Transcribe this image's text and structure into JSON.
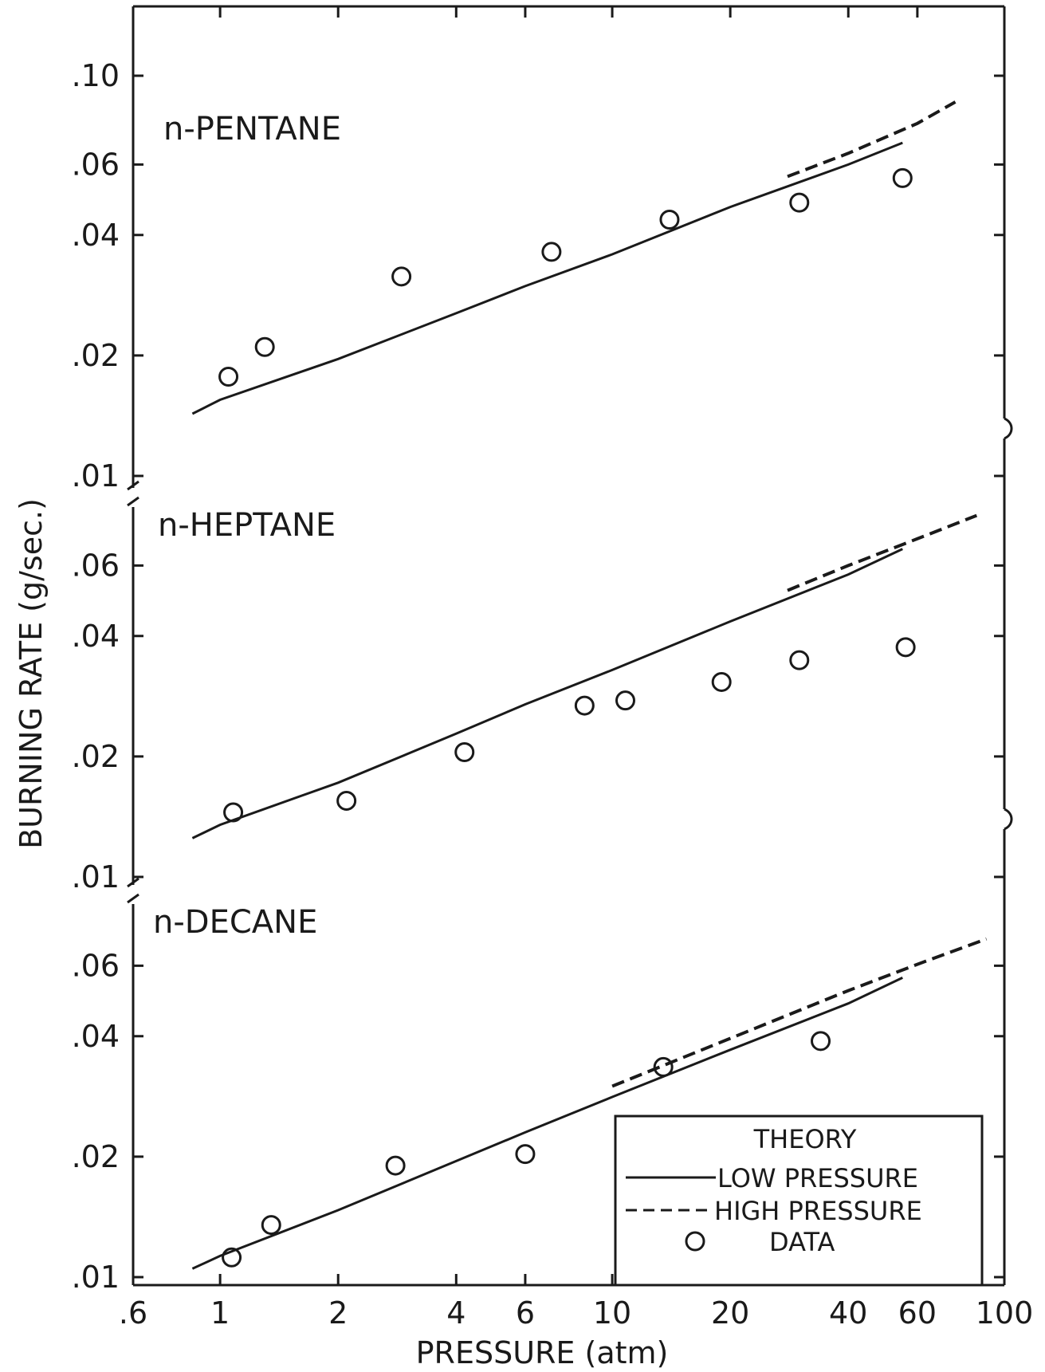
{
  "chart_data": {
    "type": "line",
    "xlabel": "PRESSURE (atm)",
    "ylabel": "BURNING RATE (g/sec.)",
    "x_scale": "log",
    "y_scale": "log",
    "xlim": [
      0.6,
      100
    ],
    "x_ticks": [
      {
        "value": 0.6,
        "label": ".6"
      },
      {
        "value": 1,
        "label": "1"
      },
      {
        "value": 2,
        "label": "2"
      },
      {
        "value": 4,
        "label": "4"
      },
      {
        "value": 6,
        "label": "6"
      },
      {
        "value": 10,
        "label": "10"
      },
      {
        "value": 20,
        "label": "20"
      },
      {
        "value": 40,
        "label": "40"
      },
      {
        "value": 60,
        "label": "60"
      },
      {
        "value": 100,
        "label": "100"
      }
    ],
    "grid": false,
    "legend_position": "bottom-right",
    "legend": {
      "title": "THEORY",
      "entries": [
        {
          "label": "LOW PRESSURE",
          "style": "solid"
        },
        {
          "label": "HIGH PRESSURE",
          "style": "dashed"
        },
        {
          "label": "DATA",
          "style": "circle"
        }
      ]
    },
    "panels": [
      {
        "label": "n-PENTANE",
        "ylim": [
          0.01,
          0.13
        ],
        "y_ticks": [
          {
            "value": 0.01,
            "label": ".01"
          },
          {
            "value": 0.02,
            "label": ".02"
          },
          {
            "value": 0.04,
            "label": ".04"
          },
          {
            "value": 0.06,
            "label": ".06"
          },
          {
            "value": 0.1,
            "label": ".10"
          }
        ],
        "series": [
          {
            "style": "solid",
            "x": [
              0.85,
              1,
              2,
              4,
              6,
              10,
              20,
              40,
              55
            ],
            "y": [
              0.0143,
              0.0155,
              0.0196,
              0.0255,
              0.0298,
              0.0358,
              0.047,
              0.06,
              0.068
            ]
          },
          {
            "style": "dashed",
            "x": [
              28,
              40,
              60,
              75
            ],
            "y": [
              0.056,
              0.064,
              0.076,
              0.086
            ]
          },
          {
            "style": "circle",
            "x": [
              1.05,
              1.3,
              2.9,
              7,
              14,
              30,
              55
            ],
            "y": [
              0.0177,
              0.021,
              0.0315,
              0.0363,
              0.0437,
              0.0482,
              0.0555
            ]
          }
        ]
      },
      {
        "label": "n-HEPTANE",
        "ylim": [
          0.01,
          0.085
        ],
        "y_ticks": [
          {
            "value": 0.02,
            "label": ".02"
          },
          {
            "value": 0.04,
            "label": ".04"
          },
          {
            "value": 0.06,
            "label": ".06"
          },
          {
            "value": 0.01,
            "label": ".01"
          }
        ],
        "series": [
          {
            "style": "solid",
            "x": [
              0.85,
              1,
              2,
              4,
              6,
              10,
              20,
              40,
              55
            ],
            "y": [
              0.0125,
              0.0135,
              0.0172,
              0.0228,
              0.027,
              0.0329,
              0.0435,
              0.057,
              0.066
            ]
          },
          {
            "style": "dashed",
            "x": [
              28,
              40,
              60,
              85
            ],
            "y": [
              0.052,
              0.06,
              0.07,
              0.08
            ]
          },
          {
            "style": "circle",
            "x": [
              1.08,
              2.1,
              4.2,
              8.5,
              10.8,
              19,
              30,
              56
            ],
            "y": [
              0.0145,
              0.0155,
              0.0205,
              0.0268,
              0.0276,
              0.0307,
              0.0348,
              0.0375
            ]
          }
        ]
      },
      {
        "label": "n-DECANE",
        "ylim": [
          0.01,
          0.085
        ],
        "y_ticks": [
          {
            "value": 0.01,
            "label": ".01"
          },
          {
            "value": 0.02,
            "label": ".02"
          },
          {
            "value": 0.04,
            "label": ".04"
          },
          {
            "value": 0.06,
            "label": ".06"
          }
        ],
        "series": [
          {
            "style": "solid",
            "x": [
              0.85,
              1,
              2,
              4,
              6,
              10,
              20,
              40,
              55
            ],
            "y": [
              0.0105,
              0.0113,
              0.0147,
              0.0195,
              0.023,
              0.0282,
              0.037,
              0.0483,
              0.056
            ]
          },
          {
            "style": "dashed",
            "x": [
              10,
              20,
              40,
              60,
              90
            ],
            "y": [
              0.03,
              0.0395,
              0.052,
              0.0605,
              0.07
            ]
          },
          {
            "style": "circle",
            "x": [
              1.07,
              1.35,
              2.8,
              6,
              13.5,
              34
            ],
            "y": [
              0.0112,
              0.0135,
              0.019,
              0.0203,
              0.0335,
              0.0389
            ]
          }
        ]
      }
    ]
  }
}
